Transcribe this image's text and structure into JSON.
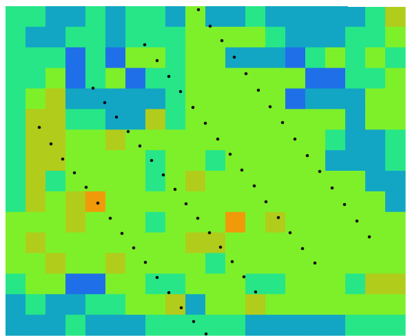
{
  "image": {
    "kind": "discrete-cell-heatmap-with-dot-overlay",
    "grid_rows": 16,
    "grid_cols": 20,
    "palette": {
      "0": "#1F6FE8",
      "1": "#12A6C4",
      "2": "#27E688",
      "3": "#7EF029",
      "4": "#B2CC1B",
      "5": "#F09A0A"
    },
    "cells": [
      "22112122131121111124",
      "21122122233332111223",
      "22202033233111023232",
      "22302302233333300223",
      "23411111233333011133",
      "24422114233333333133",
      "24433433333333332112",
      "24433332332333331112",
      "24233332343333333311",
      "24345333333333333331",
      "33343332333534333333",
      "34333333344333333333",
      "33433433332333333333",
      "23300332233322333244",
      "12112233413343333333",
      "11121112222211111222"
    ],
    "dot_color": "#111111",
    "dot_lines": [
      {
        "x": [
          288,
          305,
          322,
          340,
          357,
          375,
          392,
          410,
          428,
          446,
          464,
          482,
          500,
          518,
          536
        ],
        "y": [
          14,
          38,
          59,
          83,
          107,
          131,
          155,
          178,
          202,
          226,
          249,
          273,
          297,
          321,
          344
        ]
      },
      {
        "x": [
          210,
          228,
          245,
          262,
          280,
          298,
          316,
          334,
          351,
          369,
          386,
          404,
          421,
          439,
          457
        ],
        "y": [
          65,
          88,
          111,
          133,
          156,
          179,
          202,
          224,
          247,
          270,
          293,
          316,
          338,
          361,
          382
        ]
      },
      {
        "x": [
          135,
          152,
          169,
          186,
          203,
          220,
          237,
          254,
          270,
          287,
          304,
          320,
          337,
          354,
          371
        ],
        "y": [
          128,
          149,
          170,
          191,
          212,
          233,
          254,
          275,
          296,
          317,
          338,
          359,
          380,
          402,
          424
        ]
      },
      {
        "x": [
          57,
          74,
          91,
          108,
          125,
          142,
          160,
          177,
          194,
          211,
          228,
          245,
          263,
          281,
          299
        ],
        "y": [
          185,
          209,
          231,
          251,
          272,
          295,
          317,
          339,
          360,
          381,
          403,
          425,
          447,
          467,
          486
        ]
      }
    ]
  }
}
